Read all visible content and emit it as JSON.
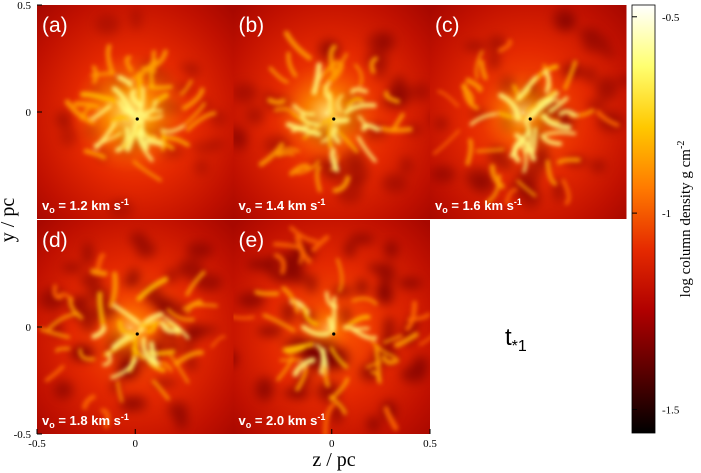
{
  "chart_data": {
    "type": "heatmap",
    "xlabel": "z / pc",
    "ylabel": "y / pc",
    "xlim": [
      -0.5,
      0.5
    ],
    "ylim": [
      -0.5,
      0.5
    ],
    "panels": [
      {
        "tag": "(a)",
        "label_v": "v",
        "label_sub": "o",
        "label_main": " = 1.2 km s",
        "label_sup": "-1",
        "xticks": [],
        "yticks": [
          0.5,
          0
        ]
      },
      {
        "tag": "(b)",
        "label_v": "v",
        "label_sub": "o",
        "label_main": " = 1.4 km s",
        "label_sup": "-1",
        "xticks": [],
        "yticks": []
      },
      {
        "tag": "(c)",
        "label_v": "v",
        "label_sub": "o",
        "label_main": " = 1.6 km s",
        "label_sup": "-1",
        "xticks": [],
        "yticks": []
      },
      {
        "tag": "(d)",
        "label_v": "v",
        "label_sub": "o",
        "label_main": " = 1.8 km s",
        "label_sup": "-1",
        "xticks": [
          -0.5,
          0
        ],
        "yticks": [
          0,
          -0.5
        ]
      },
      {
        "tag": "(e)",
        "label_v": "v",
        "label_sub": "o",
        "label_main": " = 2.0 km s",
        "label_sup": "-1",
        "xticks": [
          0,
          0.5
        ],
        "yticks": []
      }
    ],
    "annotation": {
      "text": "t",
      "sub": "*1"
    },
    "colorbar": {
      "label": "log column density g cm",
      "label_sup": "-2",
      "clim": [
        -1.56,
        -0.47
      ],
      "ticks": [
        -0.5,
        -1,
        -1.5
      ],
      "colors": [
        "#000000",
        "#5a0000",
        "#b00000",
        "#e52a00",
        "#ff7a00",
        "#ffc800",
        "#ffff70",
        "#ffffff"
      ]
    }
  }
}
